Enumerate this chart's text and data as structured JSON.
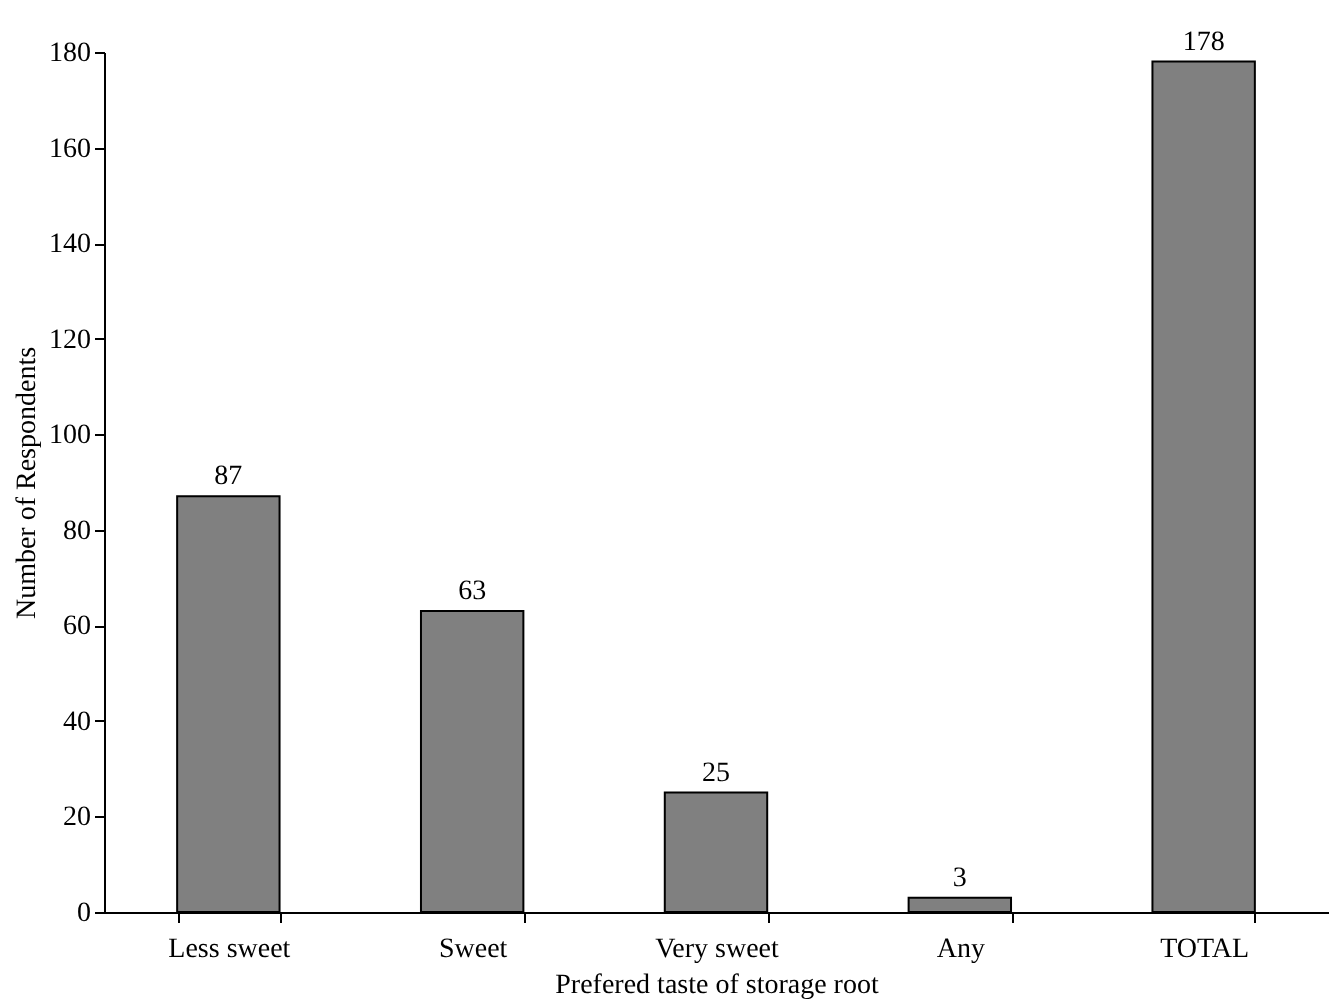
{
  "chart_data": {
    "type": "bar",
    "xlabel": "Prefered taste of storage root",
    "ylabel": "Number of Respondents",
    "categories": [
      "Less sweet",
      "Sweet",
      "Very sweet",
      "Any",
      "TOTAL"
    ],
    "values": [
      87,
      63,
      25,
      3,
      178
    ],
    "color": "#808080",
    "ylim": [
      0,
      180
    ],
    "yticks": [
      0,
      20,
      40,
      60,
      80,
      100,
      120,
      140,
      160,
      180
    ],
    "grid": false,
    "data_labels": true
  }
}
